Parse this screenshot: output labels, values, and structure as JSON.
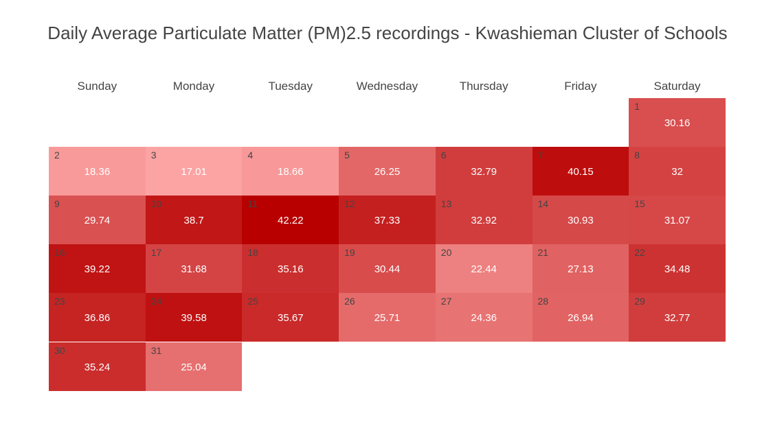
{
  "chart_data": {
    "type": "heatmap",
    "title": "Daily Average Particulate Matter (PM)2.5 recordings - Kwashieman Cluster of Schools",
    "weekdays": [
      "Sunday",
      "Monday",
      "Tuesday",
      "Wednesday",
      "Thursday",
      "Friday",
      "Saturday"
    ],
    "first_weekday_index": 6,
    "days": [
      1,
      2,
      3,
      4,
      5,
      6,
      7,
      8,
      9,
      10,
      11,
      12,
      13,
      14,
      15,
      16,
      17,
      18,
      19,
      20,
      21,
      22,
      23,
      24,
      25,
      26,
      27,
      28,
      29,
      30,
      31
    ],
    "values": [
      30.16,
      18.36,
      17.01,
      18.66,
      26.25,
      32.79,
      40.15,
      32,
      29.74,
      38.7,
      42.22,
      37.33,
      32.92,
      30.93,
      31.07,
      39.22,
      31.68,
      35.16,
      30.44,
      22.44,
      27.13,
      34.48,
      36.86,
      39.58,
      35.67,
      25.71,
      24.36,
      26.94,
      32.77,
      35.24,
      25.04
    ],
    "value_labels": [
      "30.16",
      "18.36",
      "17.01",
      "18.66",
      "26.25",
      "32.79",
      "40.15",
      "32",
      "29.74",
      "38.7",
      "42.22",
      "37.33",
      "32.92",
      "30.93",
      "31.07",
      "39.22",
      "31.68",
      "35.16",
      "30.44",
      "22.44",
      "27.13",
      "34.48",
      "36.86",
      "39.58",
      "35.67",
      "25.71",
      "24.36",
      "26.94",
      "32.77",
      "35.24",
      "25.04"
    ],
    "color_scale": {
      "min": 17.01,
      "max": 42.22,
      "low_color": "#fca3a3",
      "high_color": "#b80000"
    }
  }
}
